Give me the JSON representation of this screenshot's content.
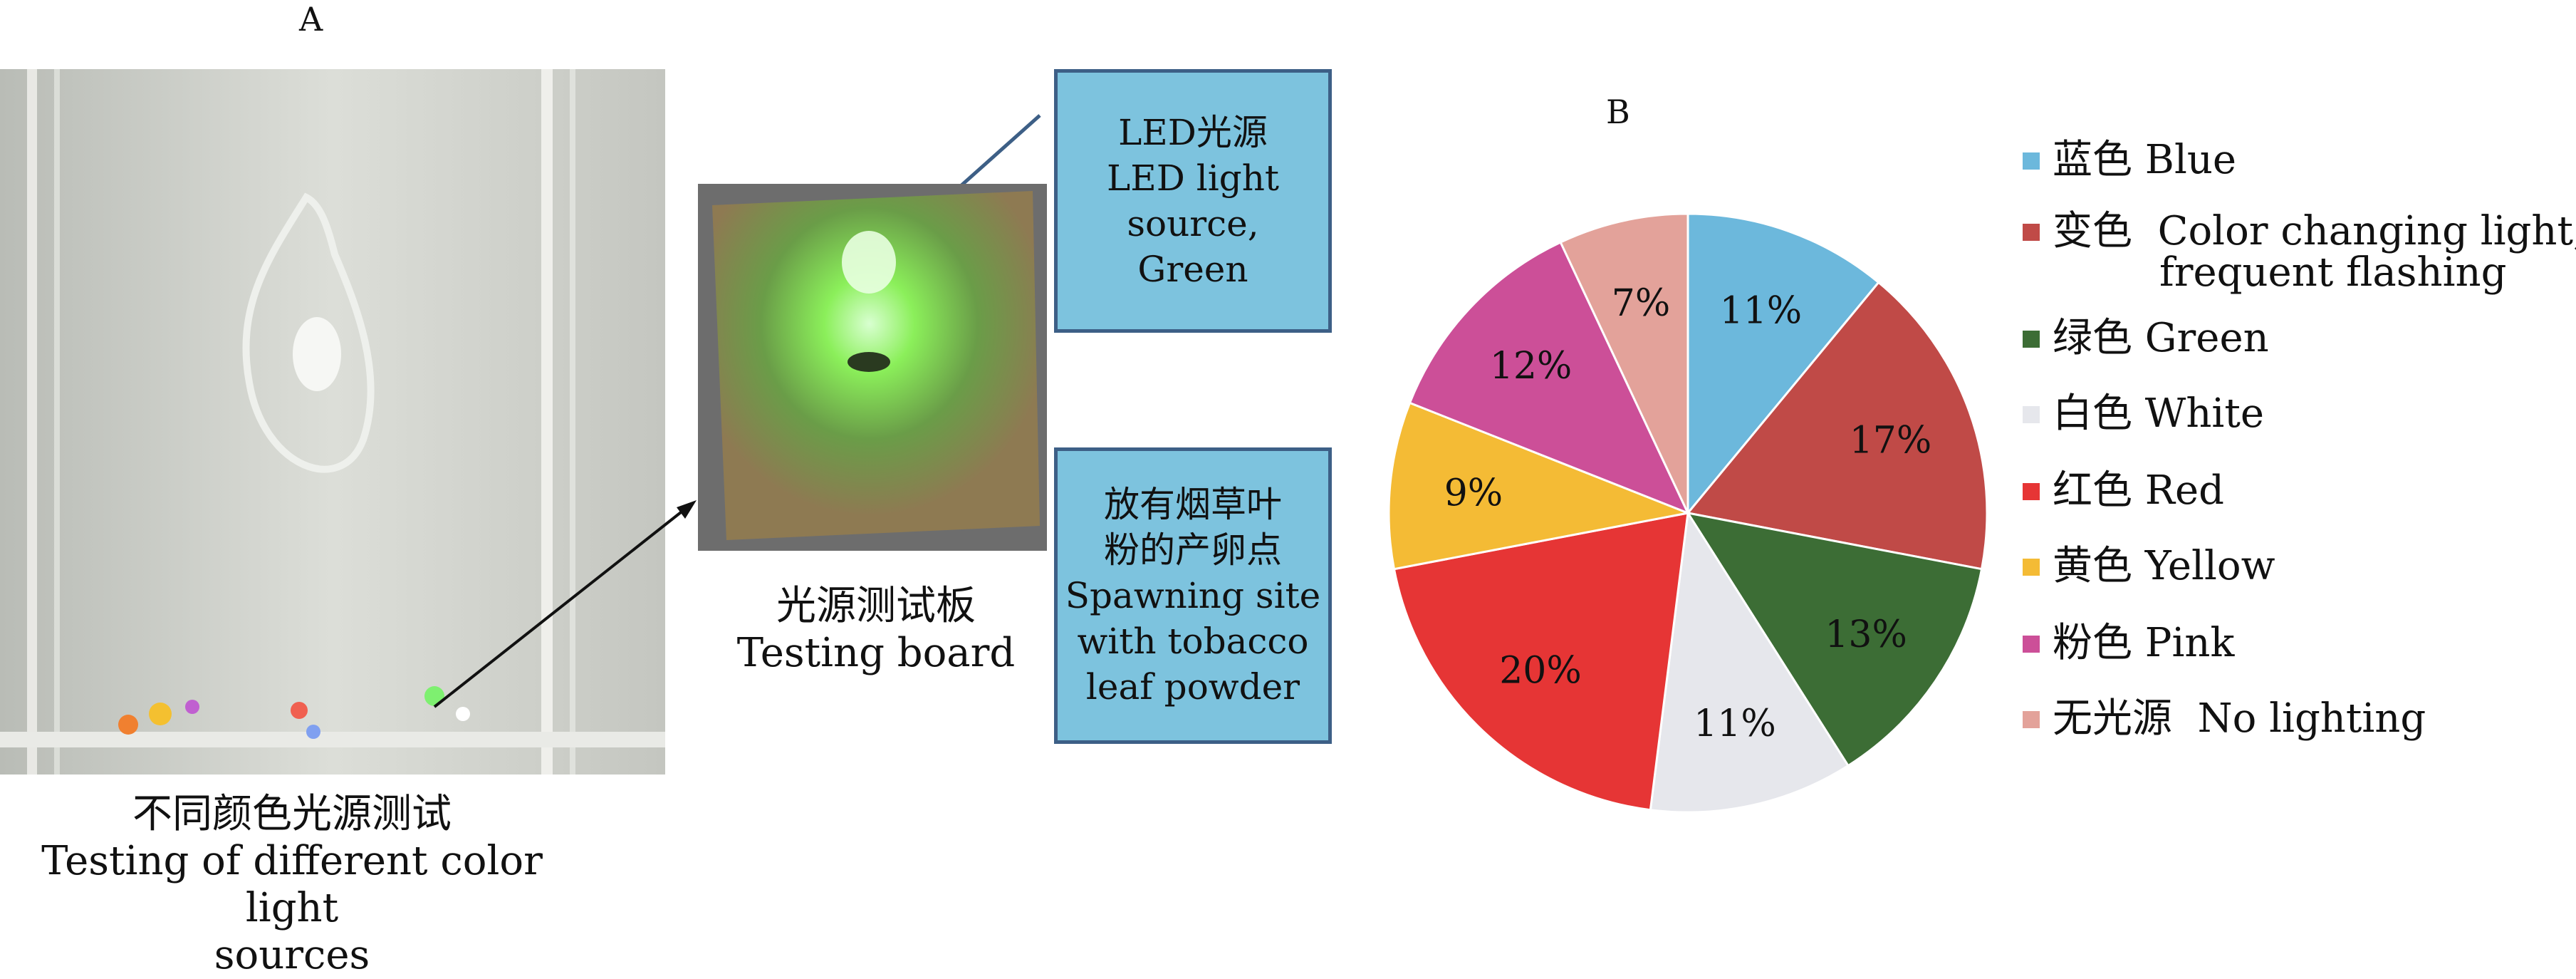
{
  "panel_a": {
    "letter": "A",
    "photo_caption": [
      "不同颜色光源测试",
      "Testing of different color light",
      "sources"
    ],
    "board_caption": [
      "光源测试板",
      "Testing board"
    ],
    "callout_led": [
      "LED光源",
      "LED light",
      "source,",
      "Green"
    ],
    "callout_spawn": [
      "放有烟草叶",
      "粉的产卵点",
      "Spawning site",
      "with tobacco",
      "leaf powder"
    ]
  },
  "panel_b": {
    "letter": "B"
  },
  "chart_data": {
    "type": "pie",
    "title": "",
    "slices": [
      {
        "label": "蓝色 Blue",
        "value": 11,
        "display": "11%",
        "color": "#6cb8dc"
      },
      {
        "label": "变色 Color changing light, frequent flashing",
        "value": 17,
        "display": "17%",
        "color": "#c04a47"
      },
      {
        "label": "绿色 Green",
        "value": 13,
        "display": "13%",
        "color": "#3c6d35"
      },
      {
        "label": "白色 White",
        "value": 11,
        "display": "11%",
        "color": "#e6e7ec"
      },
      {
        "label": "红色 Red",
        "value": 20,
        "display": "20%",
        "color": "#e63535"
      },
      {
        "label": "黄色 Yellow",
        "value": 9,
        "display": "9%",
        "color": "#f4bb35"
      },
      {
        "label": "粉色 Pink",
        "value": 12,
        "display": "12%",
        "color": "#cc4f98"
      },
      {
        "label": "无光源 No lighting",
        "value": 7,
        "display": "7%",
        "color": "#e3a29a"
      }
    ],
    "legend": [
      {
        "lines": [
          "蓝色 Blue"
        ],
        "color": "#6cb8dc"
      },
      {
        "lines": [
          "变色  Color changing light,",
          "frequent flashing"
        ],
        "color": "#c04a47"
      },
      {
        "lines": [
          "绿色 Green"
        ],
        "color": "#3c6d35"
      },
      {
        "lines": [
          "白色 White"
        ],
        "color": "#e6e7ec"
      },
      {
        "lines": [
          "红色 Red"
        ],
        "color": "#e63535"
      },
      {
        "lines": [
          "黄色 Yellow"
        ],
        "color": "#f4bb35"
      },
      {
        "lines": [
          "粉色 Pink"
        ],
        "color": "#cc4f98"
      },
      {
        "lines": [
          "无光源  No lighting"
        ],
        "color": "#e3a29a"
      }
    ],
    "legend_placement": "right"
  }
}
